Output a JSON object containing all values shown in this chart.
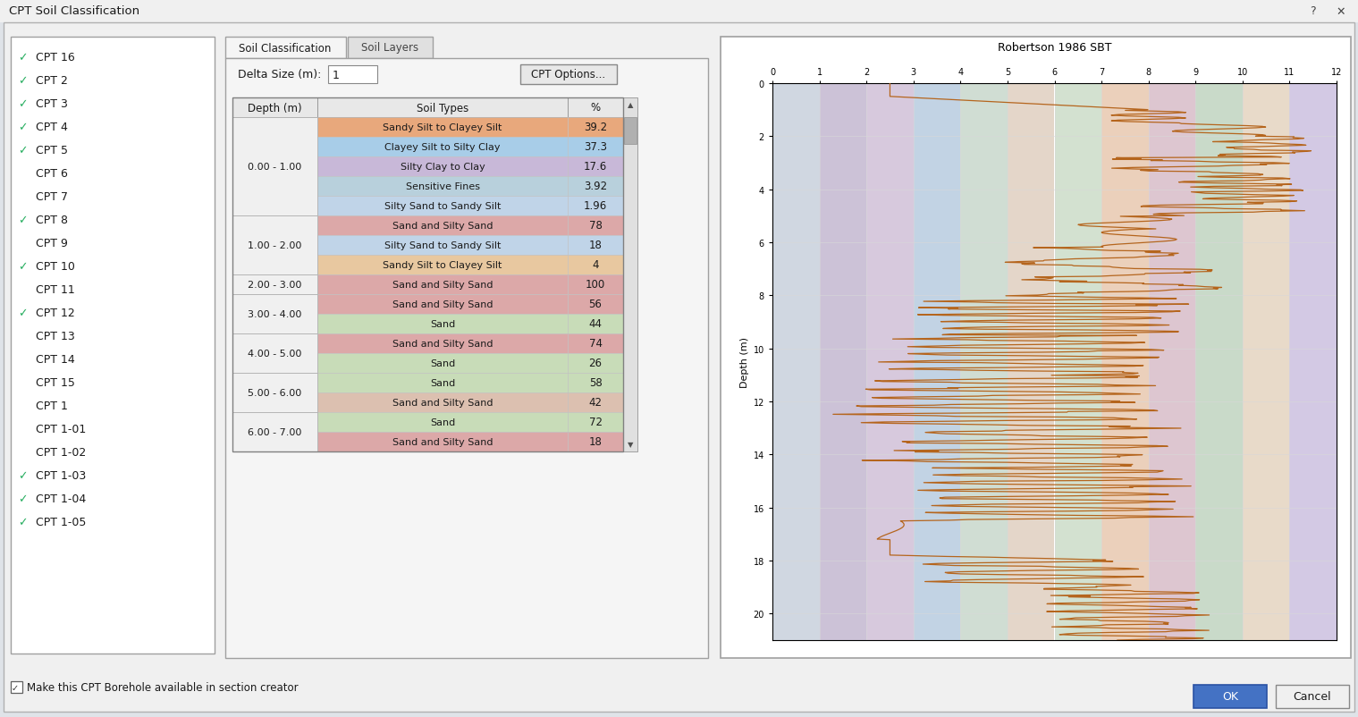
{
  "title": "CPT Soil Classification",
  "bg_color": "#dfe3e8",
  "dialog_bg": "#f0f0f0",
  "panel_bg": "#f5f5f5",
  "cpt_list": [
    {
      "name": "CPT 16",
      "checked": true
    },
    {
      "name": "CPT 2",
      "checked": true
    },
    {
      "name": "CPT 3",
      "checked": true
    },
    {
      "name": "CPT 4",
      "checked": true
    },
    {
      "name": "CPT 5",
      "checked": true
    },
    {
      "name": "CPT 6",
      "checked": false
    },
    {
      "name": "CPT 7",
      "checked": false
    },
    {
      "name": "CPT 8",
      "checked": true
    },
    {
      "name": "CPT 9",
      "checked": false
    },
    {
      "name": "CPT 10",
      "checked": true
    },
    {
      "name": "CPT 11",
      "checked": false
    },
    {
      "name": "CPT 12",
      "checked": true
    },
    {
      "name": "CPT 13",
      "checked": false
    },
    {
      "name": "CPT 14",
      "checked": false
    },
    {
      "name": "CPT 15",
      "checked": false
    },
    {
      "name": "CPT 1",
      "checked": false
    },
    {
      "name": "CPT 1-01",
      "checked": false
    },
    {
      "name": "CPT 1-02",
      "checked": false
    },
    {
      "name": "CPT 1-03",
      "checked": true
    },
    {
      "name": "CPT 1-04",
      "checked": true
    },
    {
      "name": "CPT 1-05",
      "checked": true
    }
  ],
  "delta_size": "1",
  "table_rows": [
    {
      "depth": "0.00 - 1.00",
      "soil": "Sandy Silt to Clayey Silt",
      "pct": "39.2",
      "color": "#E8A87C",
      "group": 0
    },
    {
      "depth": "",
      "soil": "Clayey Silt to Silty Clay",
      "pct": "37.3",
      "color": "#A8CDE8",
      "group": 0
    },
    {
      "depth": "",
      "soil": "Silty Clay to Clay",
      "pct": "17.6",
      "color": "#C8B8D8",
      "group": 0
    },
    {
      "depth": "",
      "soil": "Sensitive Fines",
      "pct": "3.92",
      "color": "#B8D0DC",
      "group": 0
    },
    {
      "depth": "",
      "soil": "Silty Sand to Sandy Silt",
      "pct": "1.96",
      "color": "#C0D4E8",
      "group": 0
    },
    {
      "depth": "1.00 - 2.00",
      "soil": "Sand and Silty Sand",
      "pct": "78",
      "color": "#DCA8A8",
      "group": 1
    },
    {
      "depth": "",
      "soil": "Silty Sand to Sandy Silt",
      "pct": "18",
      "color": "#C0D4E8",
      "group": 1
    },
    {
      "depth": "",
      "soil": "Sandy Silt to Clayey Silt",
      "pct": "4",
      "color": "#E8C8A0",
      "group": 1
    },
    {
      "depth": "2.00 - 3.00",
      "soil": "Sand and Silty Sand",
      "pct": "100",
      "color": "#DCA8A8",
      "group": 2
    },
    {
      "depth": "3.00 - 4.00",
      "soil": "Sand and Silty Sand",
      "pct": "56",
      "color": "#DCA8A8",
      "group": 3
    },
    {
      "depth": "",
      "soil": "Sand",
      "pct": "44",
      "color": "#C8DCB8",
      "group": 3
    },
    {
      "depth": "4.00 - 5.00",
      "soil": "Sand and Silty Sand",
      "pct": "74",
      "color": "#DCA8A8",
      "group": 4
    },
    {
      "depth": "",
      "soil": "Sand",
      "pct": "26",
      "color": "#C8DCB8",
      "group": 4
    },
    {
      "depth": "5.00 - 6.00",
      "soil": "Sand",
      "pct": "58",
      "color": "#C8DCB8",
      "group": 5
    },
    {
      "depth": "",
      "soil": "Sand and Silty Sand",
      "pct": "42",
      "color": "#DCC0B0",
      "group": 5
    },
    {
      "depth": "6.00 - 7.00",
      "soil": "Sand",
      "pct": "72",
      "color": "#C8DCB8",
      "group": 6
    },
    {
      "depth": "",
      "soil": "Sand and Silty Sand",
      "pct": "18",
      "color": "#DCA8A8",
      "group": 6
    }
  ],
  "chart_title": "Robertson 1986 SBT",
  "chart_depth_max": 21,
  "zone_colors": [
    "#c8d0dc",
    "#c4b8d0",
    "#d0c0d8",
    "#b8cce0",
    "#c8d8cc",
    "#e0cfc0",
    "#ccdcc8",
    "#e8c8b0",
    "#d8bcc8",
    "#c0d4c0",
    "#e4d4c0",
    "#ccc0e0"
  ],
  "check_color": "#27ae60",
  "ok_btn_color": "#4472c4",
  "cpt_line_color": "#b5651d"
}
